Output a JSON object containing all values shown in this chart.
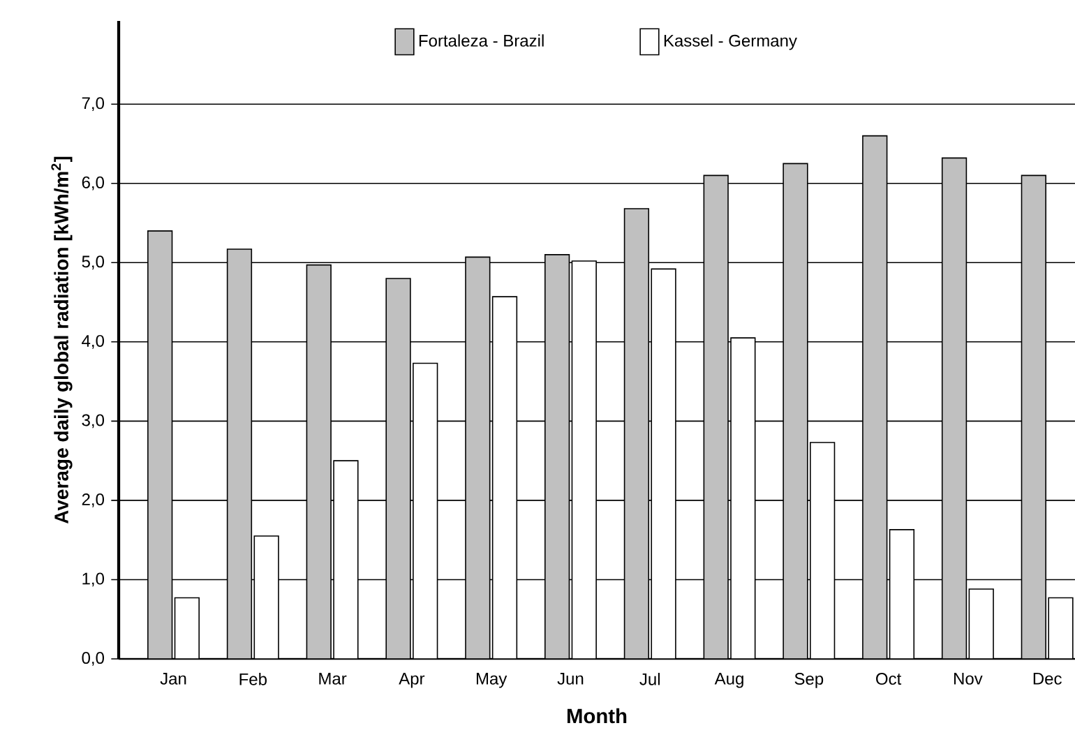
{
  "chart_data": {
    "type": "bar",
    "xlabel": "Month",
    "ylabel": "Average daily global radiation [kWh/m$^{2}$]",
    "categories": [
      "Jan",
      "Feb",
      "Mar",
      "Apr",
      "May",
      "Jun",
      "Jul",
      "Aug",
      "Sep",
      "Oct",
      "Nov",
      "Dec"
    ],
    "series": [
      {
        "name": "Fortaleza  - Brazil",
        "color": "#c0c0c0",
        "values": [
          5.4,
          5.17,
          4.97,
          4.8,
          5.07,
          5.1,
          5.68,
          6.1,
          6.25,
          6.6,
          6.32,
          6.1
        ]
      },
      {
        "name": "Kassel  - Germany",
        "color": "#ffffff",
        "values": [
          0.77,
          1.55,
          2.5,
          3.73,
          4.57,
          5.02,
          4.92,
          4.05,
          2.73,
          1.63,
          0.88,
          0.77
        ]
      }
    ],
    "ylim": [
      0,
      8.05
    ],
    "yticks": [
      {
        "value": 0,
        "label": "0,0"
      },
      {
        "value": 1,
        "label": "1,0"
      },
      {
        "value": 2,
        "label": "2,0"
      },
      {
        "value": 3,
        "label": "3,0"
      },
      {
        "value": 4,
        "label": "4,0"
      },
      {
        "value": 5,
        "label": "5,0"
      },
      {
        "value": 6,
        "label": "6,0"
      },
      {
        "value": 7,
        "label": "7,0"
      }
    ],
    "grid": "y",
    "legend": "top"
  }
}
